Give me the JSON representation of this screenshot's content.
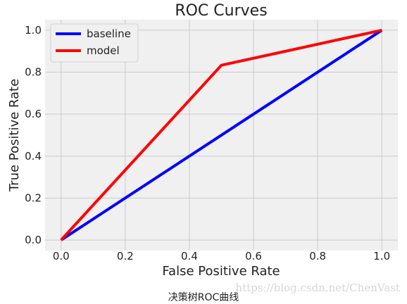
{
  "chart_data": {
    "type": "line",
    "title": "ROC Curves",
    "xlabel": "False Positive Rate",
    "ylabel": "True Positive Rate",
    "xlim": [
      -0.05,
      1.05
    ],
    "ylim": [
      -0.05,
      1.05
    ],
    "xticks": [
      0.0,
      0.2,
      0.4,
      0.6,
      0.8,
      1.0
    ],
    "yticks": [
      0.0,
      0.2,
      0.4,
      0.6,
      0.8,
      1.0
    ],
    "xtick_labels": [
      "0.0",
      "0.2",
      "0.4",
      "0.6",
      "0.8",
      "1.0"
    ],
    "ytick_labels": [
      "0.0",
      "0.2",
      "0.4",
      "0.6",
      "0.8",
      "1.0"
    ],
    "grid": true,
    "legend_position": "top-left",
    "series": [
      {
        "name": "baseline",
        "color": "#0000ff",
        "x": [
          0.0,
          1.0
        ],
        "y": [
          0.0,
          1.0
        ]
      },
      {
        "name": "model",
        "color": "#ff0000",
        "x": [
          0.0,
          0.5,
          1.0
        ],
        "y": [
          0.0,
          0.833,
          1.0
        ]
      }
    ]
  },
  "caption": "决策树ROC曲线",
  "watermark": "https://blog.csdn.net/ChenVast"
}
